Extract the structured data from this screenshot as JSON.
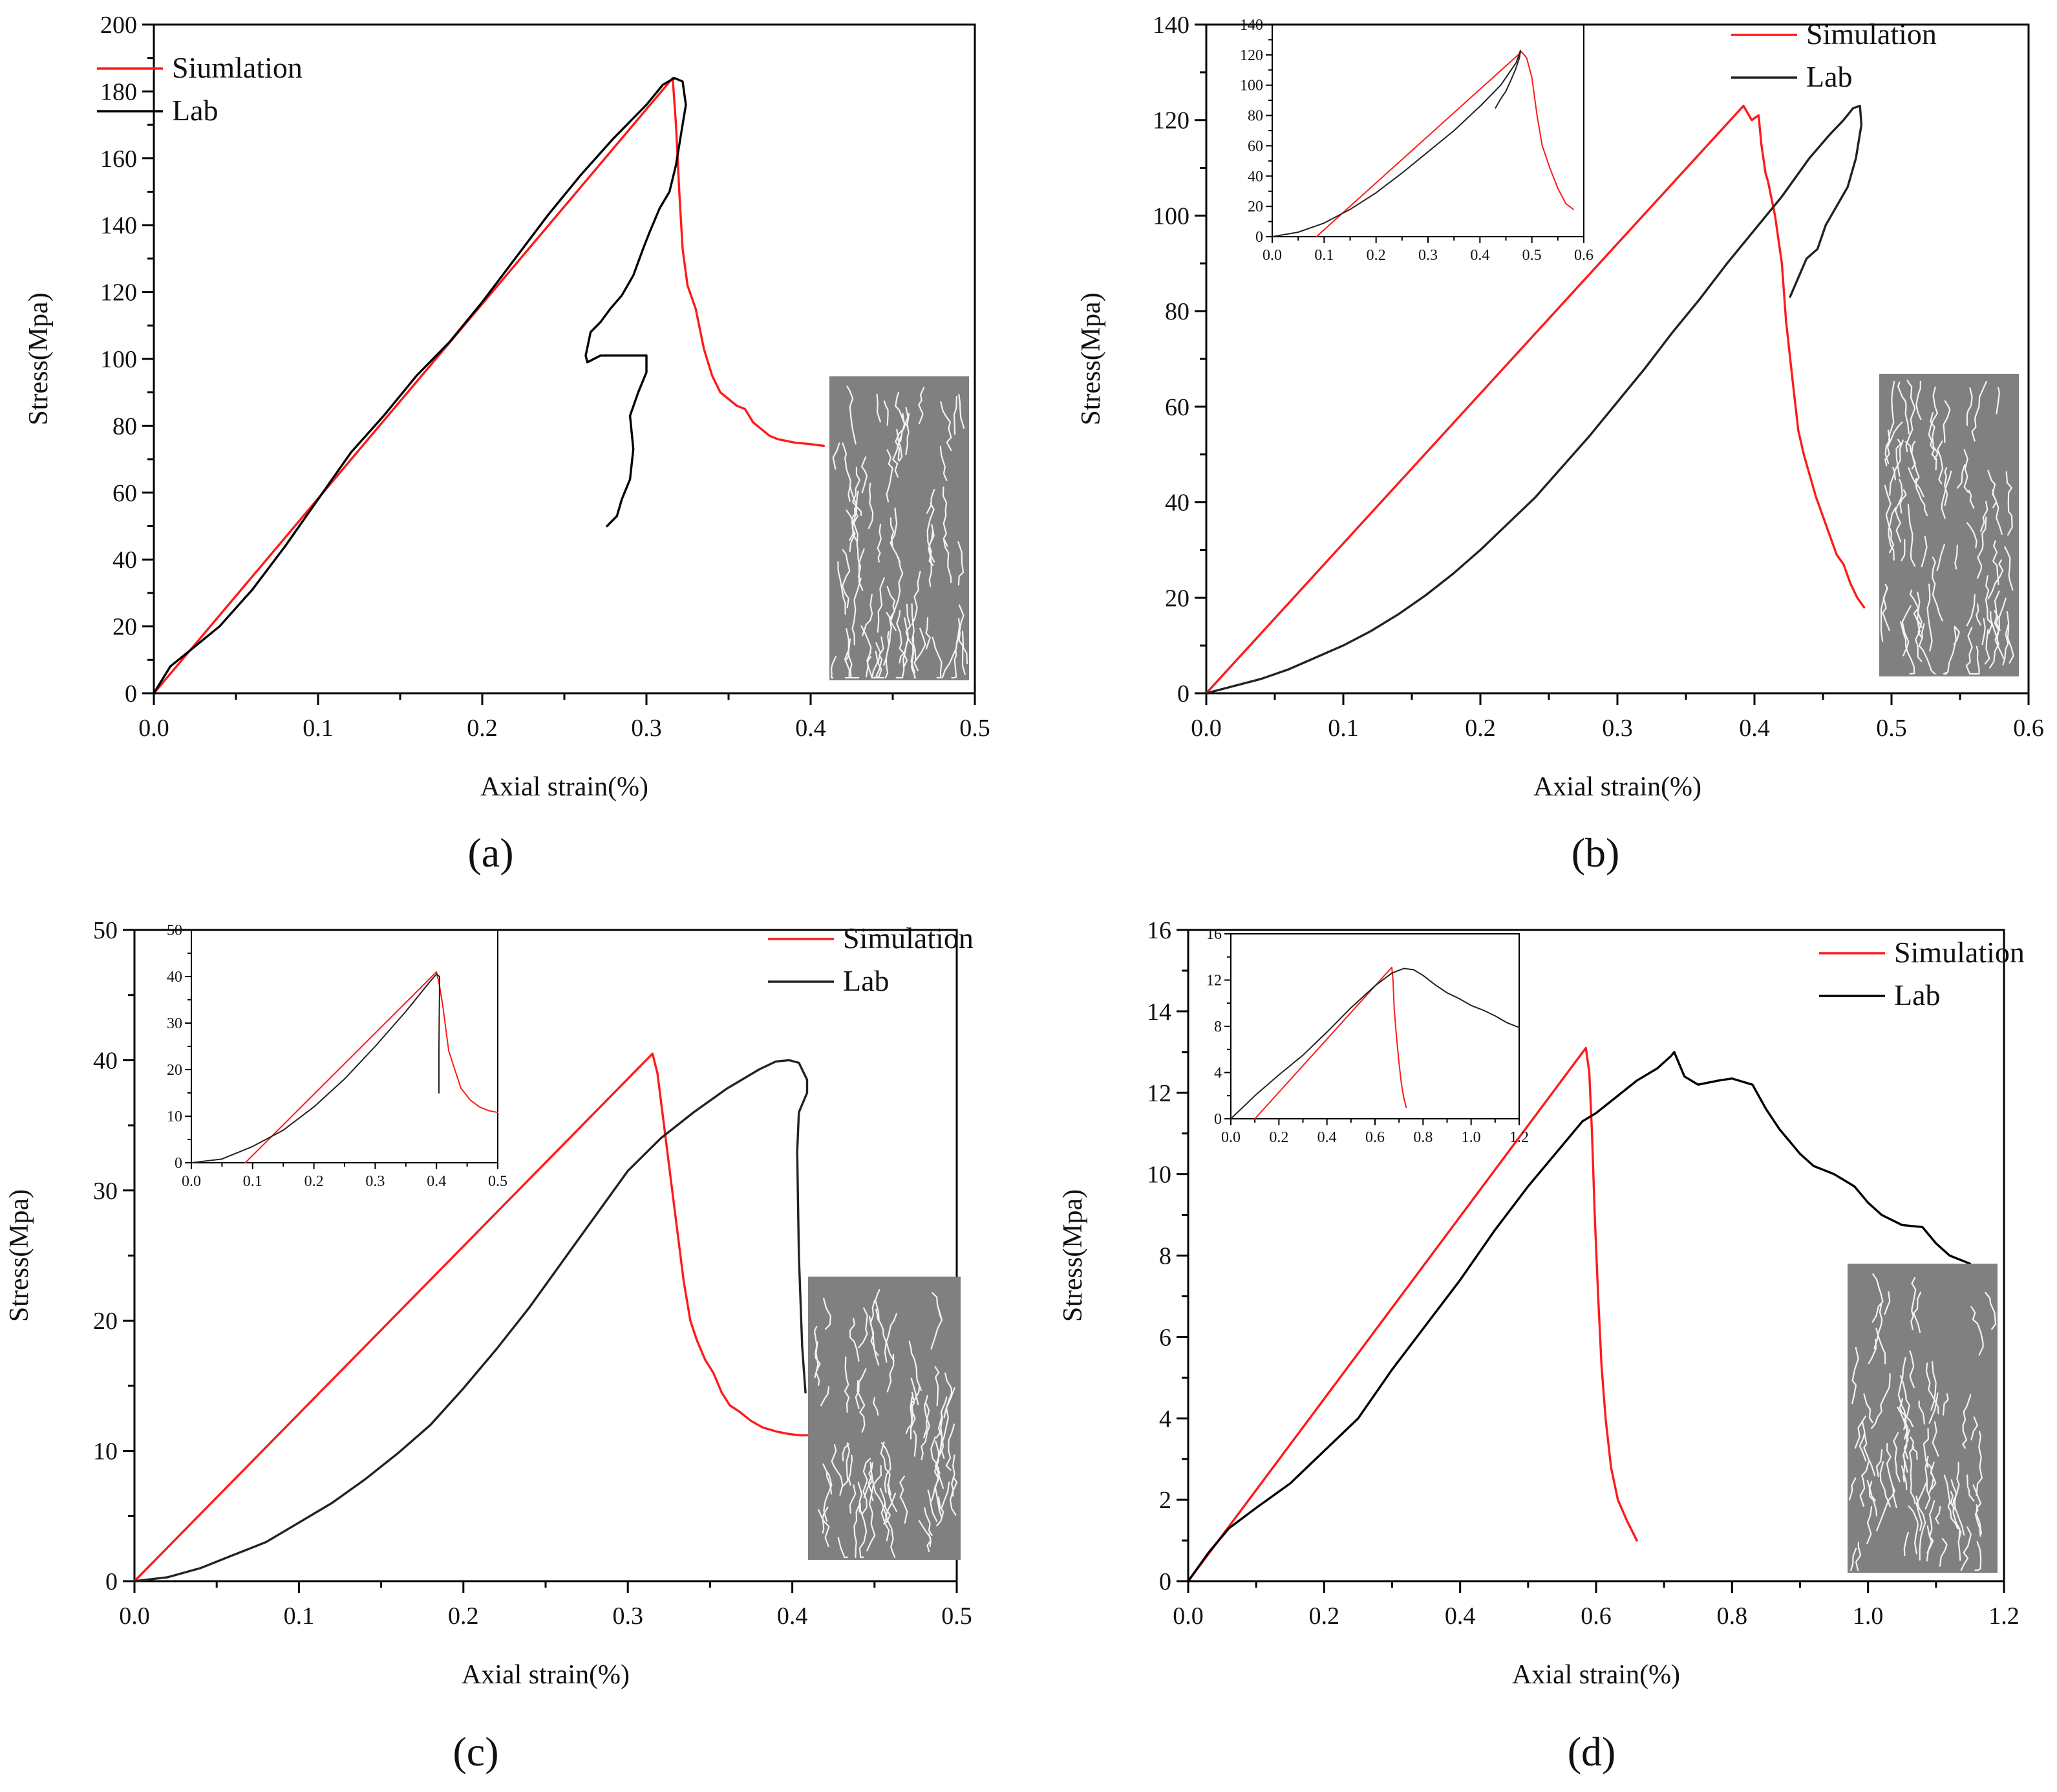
{
  "chart_data": [
    {
      "id": "a",
      "type": "line",
      "panel_label": "(a)",
      "xlabel": "Axial strain(%)",
      "ylabel": "Stress(Mpa)",
      "xlim": [
        0,
        0.5
      ],
      "ylim": [
        0,
        200
      ],
      "xticks": [
        0.0,
        0.1,
        0.2,
        0.3,
        0.4,
        0.5
      ],
      "yticks": [
        0,
        20,
        40,
        60,
        80,
        100,
        120,
        140,
        160,
        180,
        200
      ],
      "xtick_labels": [
        "0.0",
        "0.1",
        "0.2",
        "0.3",
        "0.4",
        "0.5"
      ],
      "ytick_labels": [
        "0",
        "20",
        "40",
        "60",
        "80",
        "100",
        "120",
        "140",
        "160",
        "180",
        "200"
      ],
      "legend": {
        "position": "top-left",
        "entries": [
          "Siumlation",
          "Lab"
        ]
      },
      "series": [
        {
          "name": "Siumlation",
          "color": "#ff1a1a",
          "x": [
            0,
            0.316,
            0.318,
            0.32,
            0.322,
            0.325,
            0.33,
            0.335,
            0.34,
            0.345,
            0.35,
            0.355,
            0.36,
            0.365,
            0.37,
            0.375,
            0.38,
            0.39,
            0.4,
            0.408
          ],
          "y": [
            0,
            184,
            170,
            150,
            133,
            122,
            115,
            103,
            95,
            90,
            88,
            86,
            85,
            81,
            79,
            77,
            76,
            75,
            74.5,
            74
          ]
        },
        {
          "name": "Lab",
          "color": "#000000",
          "x": [
            0,
            0.01,
            0.02,
            0.04,
            0.06,
            0.08,
            0.1,
            0.12,
            0.14,
            0.16,
            0.18,
            0.2,
            0.22,
            0.24,
            0.26,
            0.28,
            0.3,
            0.31,
            0.317,
            0.322,
            0.324,
            0.321,
            0.318,
            0.314,
            0.308,
            0.302,
            0.298,
            0.292,
            0.285,
            0.278,
            0.272,
            0.266,
            0.263,
            0.264,
            0.272,
            0.285,
            0.3,
            0.3,
            0.295,
            0.29,
            0.292,
            0.29,
            0.285,
            0.282,
            0.276
          ],
          "y": [
            0,
            8,
            12,
            20,
            31,
            44,
            58,
            72,
            83,
            95,
            105,
            117,
            130,
            143,
            155,
            166,
            176,
            182,
            184,
            183,
            176,
            167,
            158,
            150,
            145,
            138,
            133,
            125,
            119,
            115,
            111,
            108,
            101,
            99,
            101,
            101,
            101,
            96,
            90,
            83,
            73,
            64,
            58,
            53,
            50
          ]
        }
      ]
    },
    {
      "id": "b",
      "type": "line",
      "panel_label": "(b)",
      "xlabel": "Axial strain(%)",
      "ylabel": "Stress(Mpa)",
      "xlim": [
        0,
        0.6
      ],
      "ylim": [
        0,
        140
      ],
      "xticks": [
        0.0,
        0.1,
        0.2,
        0.3,
        0.4,
        0.5,
        0.6
      ],
      "yticks": [
        0,
        20,
        40,
        60,
        80,
        100,
        120,
        140
      ],
      "xtick_labels": [
        "0.0",
        "0.1",
        "0.2",
        "0.3",
        "0.4",
        "0.5",
        "0.6"
      ],
      "ytick_labels": [
        "0",
        "20",
        "40",
        "60",
        "80",
        "100",
        "120",
        "140"
      ],
      "legend": {
        "position": "top-right",
        "entries": [
          "Simulation",
          "Lab"
        ]
      },
      "series": [
        {
          "name": "Simulation",
          "color": "#ff1a1a",
          "x": [
            0,
            0.392,
            0.398,
            0.403,
            0.405,
            0.408,
            0.41,
            0.415,
            0.42,
            0.423,
            0.428,
            0.432,
            0.436,
            0.44,
            0.445,
            0.45,
            0.455,
            0.46,
            0.465,
            0.47,
            0.475,
            0.48
          ],
          "y": [
            0,
            123,
            120,
            121,
            115,
            109,
            107,
            100,
            90,
            78,
            65,
            55,
            50,
            46,
            41,
            37,
            33,
            29,
            27,
            23,
            20,
            18
          ]
        },
        {
          "name": "Lab",
          "color": "#222222",
          "x": [
            0,
            0.02,
            0.04,
            0.06,
            0.08,
            0.1,
            0.12,
            0.14,
            0.16,
            0.18,
            0.2,
            0.22,
            0.24,
            0.26,
            0.28,
            0.3,
            0.32,
            0.34,
            0.36,
            0.38,
            0.4,
            0.42,
            0.44,
            0.455,
            0.465,
            0.472,
            0.477,
            0.478,
            0.474,
            0.468,
            0.46,
            0.452,
            0.446,
            0.438,
            0.432,
            0.426
          ],
          "y": [
            0,
            1.5,
            3,
            5,
            7.5,
            10,
            13,
            16.5,
            20.5,
            25,
            30,
            35.5,
            41,
            47.5,
            54,
            61,
            68,
            75.5,
            82.5,
            90,
            97,
            104,
            112,
            117,
            120,
            122.5,
            123,
            119,
            112,
            106,
            102,
            98,
            93,
            91,
            87,
            83
          ]
        }
      ],
      "inset": {
        "xlim": [
          0,
          0.6
        ],
        "ylim": [
          0,
          140
        ],
        "xticks": [
          0.0,
          0.1,
          0.2,
          0.3,
          0.4,
          0.5,
          0.6
        ],
        "yticks": [
          0,
          20,
          40,
          60,
          80,
          100,
          120,
          140
        ],
        "xtick_labels": [
          "0.0",
          "0.1",
          "0.2",
          "0.3",
          "0.4",
          "0.5",
          "0.6"
        ],
        "ytick_labels": [
          "0",
          "20",
          "40",
          "60",
          "80",
          "100",
          "120",
          "140"
        ],
        "series": [
          {
            "name": "Simulation",
            "color": "#ff1a1a",
            "x": [
              0.085,
              0.48,
              0.49,
              0.5,
              0.51,
              0.52,
              0.535,
              0.55,
              0.565,
              0.58
            ],
            "y": [
              0,
              122,
              118,
              105,
              80,
              60,
              45,
              32,
              22,
              18
            ]
          },
          {
            "name": "Lab",
            "color": "#222222",
            "x": [
              0,
              0.05,
              0.1,
              0.15,
              0.2,
              0.25,
              0.3,
              0.35,
              0.4,
              0.44,
              0.47,
              0.478,
              0.476,
              0.468,
              0.458,
              0.45,
              0.44,
              0.43
            ],
            "y": [
              0,
              3,
              9,
              18,
              29,
              42,
              56,
              70,
              86,
              100,
              115,
              123,
              118,
              110,
              102,
              96,
              91,
              85
            ]
          }
        ]
      }
    },
    {
      "id": "c",
      "type": "line",
      "panel_label": "(c)",
      "xlabel": "Axial strain(%)",
      "ylabel": "Stress(Mpa)",
      "xlim": [
        0,
        0.5
      ],
      "ylim": [
        0,
        50
      ],
      "xticks": [
        0.0,
        0.1,
        0.2,
        0.3,
        0.4,
        0.5
      ],
      "yticks": [
        0,
        10,
        20,
        30,
        40,
        50
      ],
      "xtick_labels": [
        "0.0",
        "0.1",
        "0.2",
        "0.3",
        "0.4",
        "0.5"
      ],
      "ytick_labels": [
        "0",
        "10",
        "20",
        "30",
        "40",
        "50"
      ],
      "legend": {
        "position": "top-right",
        "entries": [
          "Simulation",
          "Lab"
        ]
      },
      "series": [
        {
          "name": "Simulation",
          "color": "#ff1a1a",
          "x": [
            0,
            0.315,
            0.318,
            0.322,
            0.326,
            0.33,
            0.334,
            0.338,
            0.342,
            0.347,
            0.352,
            0.357,
            0.362,
            0.368,
            0.375,
            0.382,
            0.39,
            0.398,
            0.405,
            0.41
          ],
          "y": [
            0,
            40.5,
            39,
            35,
            31,
            27,
            23,
            20,
            18.5,
            17,
            16,
            14.5,
            13.5,
            13,
            12.3,
            11.8,
            11.5,
            11.3,
            11.2,
            11.2
          ]
        },
        {
          "name": "Lab",
          "color": "#222222",
          "x": [
            0,
            0.02,
            0.04,
            0.06,
            0.08,
            0.1,
            0.12,
            0.14,
            0.16,
            0.18,
            0.2,
            0.22,
            0.24,
            0.26,
            0.28,
            0.3,
            0.32,
            0.34,
            0.36,
            0.38,
            0.39,
            0.398,
            0.404,
            0.409,
            0.409,
            0.404,
            0.403,
            0.404,
            0.406,
            0.408
          ],
          "y": [
            0,
            0.3,
            1,
            2,
            3,
            4.5,
            6,
            7.8,
            9.8,
            12,
            14.8,
            17.8,
            21,
            24.5,
            28,
            31.5,
            34,
            36,
            37.8,
            39.3,
            39.9,
            40,
            39.8,
            38.5,
            37.5,
            36,
            33,
            25,
            18,
            14.5
          ]
        }
      ],
      "inset": {
        "xlim": [
          0,
          0.5
        ],
        "ylim": [
          0,
          50
        ],
        "xticks": [
          0.0,
          0.1,
          0.2,
          0.3,
          0.4,
          0.5
        ],
        "yticks": [
          0,
          10,
          20,
          30,
          40,
          50
        ],
        "xtick_labels": [
          "0.0",
          "0.1",
          "0.2",
          "0.3",
          "0.4",
          "0.5"
        ],
        "ytick_labels": [
          "0",
          "10",
          "20",
          "30",
          "40",
          "50"
        ],
        "series": [
          {
            "name": "Simulation",
            "color": "#ff1a1a",
            "x": [
              0.088,
              0.4,
              0.405,
              0.41,
              0.415,
              0.42,
              0.43,
              0.44,
              0.455,
              0.47,
              0.485,
              0.5
            ],
            "y": [
              0,
              41,
              38,
              34,
              29,
              24,
              20,
              16,
              13.5,
              12,
              11.2,
              10.8
            ]
          },
          {
            "name": "Lab",
            "color": "#222222",
            "x": [
              0,
              0.05,
              0.1,
              0.15,
              0.2,
              0.25,
              0.3,
              0.35,
              0.39,
              0.4,
              0.405,
              0.405,
              0.404,
              0.404
            ],
            "y": [
              0,
              0.8,
              3.5,
              7,
              12,
              18,
              25,
              32.5,
              39,
              40.5,
              40,
              37,
              25,
              15
            ]
          }
        ]
      }
    },
    {
      "id": "d",
      "type": "line",
      "panel_label": "(d)",
      "xlabel": "Axial strain(%)",
      "ylabel": "Stress(Mpa)",
      "xlim": [
        0,
        1.2
      ],
      "ylim": [
        0,
        16
      ],
      "xticks": [
        0.0,
        0.2,
        0.4,
        0.6,
        0.8,
        1.0,
        1.2
      ],
      "yticks": [
        0,
        2,
        4,
        6,
        8,
        10,
        12,
        14,
        16
      ],
      "xtick_labels": [
        "0.0",
        "0.2",
        "0.4",
        "0.6",
        "0.8",
        "1.0",
        "1.2"
      ],
      "ytick_labels": [
        "0",
        "2",
        "4",
        "6",
        "8",
        "10",
        "12",
        "14",
        "16"
      ],
      "legend": {
        "position": "top-right",
        "entries": [
          "Simulation",
          "Lab"
        ]
      },
      "series": [
        {
          "name": "Simulation",
          "color": "#ff1a1a",
          "x": [
            0,
            0.585,
            0.59,
            0.594,
            0.598,
            0.603,
            0.608,
            0.614,
            0.622,
            0.632,
            0.645,
            0.66
          ],
          "y": [
            0,
            13.1,
            12.5,
            11,
            9,
            7,
            5.3,
            4,
            2.8,
            2,
            1.5,
            1.0
          ]
        },
        {
          "name": "Lab",
          "color": "#000000",
          "x": [
            0,
            0.03,
            0.06,
            0.1,
            0.15,
            0.2,
            0.25,
            0.3,
            0.35,
            0.4,
            0.45,
            0.5,
            0.55,
            0.58,
            0.6,
            0.63,
            0.66,
            0.69,
            0.71,
            0.715,
            0.73,
            0.75,
            0.78,
            0.8,
            0.83,
            0.85,
            0.87,
            0.9,
            0.92,
            0.95,
            0.98,
            1.0,
            1.02,
            1.05,
            1.08,
            1.1,
            1.12,
            1.15
          ],
          "y": [
            0,
            0.7,
            1.3,
            1.8,
            2.4,
            3.2,
            4.0,
            5.2,
            6.3,
            7.4,
            8.6,
            9.7,
            10.7,
            11.3,
            11.5,
            11.9,
            12.3,
            12.6,
            12.9,
            13.0,
            12.4,
            12.2,
            12.3,
            12.35,
            12.2,
            11.6,
            11.1,
            10.5,
            10.2,
            10.0,
            9.7,
            9.3,
            9.0,
            8.75,
            8.7,
            8.3,
            8.0,
            7.8
          ]
        }
      ],
      "inset": {
        "xlim": [
          0,
          1.2
        ],
        "ylim": [
          0,
          16
        ],
        "xticks": [
          0.0,
          0.2,
          0.4,
          0.6,
          0.8,
          1.0,
          1.2
        ],
        "yticks": [
          0,
          4,
          8,
          12,
          16
        ],
        "xtick_labels": [
          "0.0",
          "0.2",
          "0.4",
          "0.6",
          "0.8",
          "1.0",
          "1.2"
        ],
        "ytick_labels": [
          "0",
          "4",
          "8",
          "12",
          "16"
        ],
        "series": [
          {
            "name": "Simulation",
            "color": "#ff1a1a",
            "x": [
              0.1,
              0.67,
              0.675,
              0.68,
              0.69,
              0.7,
              0.71,
              0.72,
              0.73
            ],
            "y": [
              0,
              13.1,
              12,
              9.5,
              7,
              4.8,
              3,
              1.8,
              1
            ]
          },
          {
            "name": "Lab",
            "color": "#222222",
            "x": [
              0,
              0.1,
              0.2,
              0.3,
              0.4,
              0.5,
              0.6,
              0.67,
              0.72,
              0.76,
              0.8,
              0.85,
              0.9,
              0.95,
              1.0,
              1.05,
              1.1,
              1.15,
              1.2
            ],
            "y": [
              0,
              2,
              3.8,
              5.5,
              7.5,
              9.6,
              11.5,
              12.6,
              13,
              12.9,
              12.4,
              11.6,
              10.9,
              10.4,
              9.8,
              9.4,
              8.9,
              8.3,
              7.9
            ]
          }
        ]
      }
    }
  ]
}
